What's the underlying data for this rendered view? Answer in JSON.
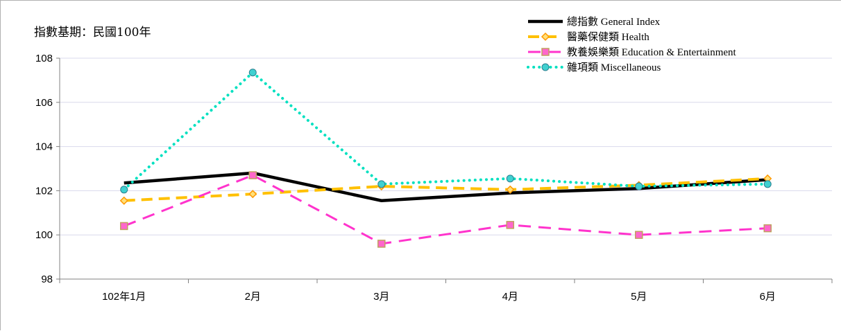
{
  "chart_data": {
    "type": "line",
    "title": "",
    "note": "指數基期：民國100年",
    "xlabel": "",
    "ylabel": "",
    "categories": [
      "102年1月",
      "2月",
      "3月",
      "4月",
      "5月",
      "6月"
    ],
    "ylim": [
      98,
      108
    ],
    "yticks": [
      98,
      100,
      102,
      104,
      106,
      108
    ],
    "grid": true,
    "legend_position": "top-right",
    "series": [
      {
        "name": "總指數 General Index",
        "values": [
          102.35,
          102.8,
          101.55,
          101.9,
          102.1,
          102.5
        ],
        "color": "#000000",
        "style": "solid",
        "marker": "none"
      },
      {
        "name": "醫藥保健類 Health",
        "values": [
          101.55,
          101.85,
          102.2,
          102.05,
          102.25,
          102.55
        ],
        "color": "#ffc000",
        "style": "dash",
        "marker": "diamond",
        "marker_color": "#ff9900"
      },
      {
        "name": "教養娛樂類 Education & Entertainment",
        "values": [
          100.4,
          102.7,
          99.6,
          100.45,
          100.0,
          100.3
        ],
        "color": "#ff33cc",
        "style": "longdash",
        "marker": "square",
        "marker_color": "#c0a060"
      },
      {
        "name": "雜項類 Miscellaneous",
        "values": [
          102.05,
          107.35,
          102.3,
          102.55,
          102.2,
          102.3
        ],
        "color": "#00e0c0",
        "style": "dot",
        "marker": "circle",
        "marker_color": "#40c0c0"
      }
    ]
  }
}
